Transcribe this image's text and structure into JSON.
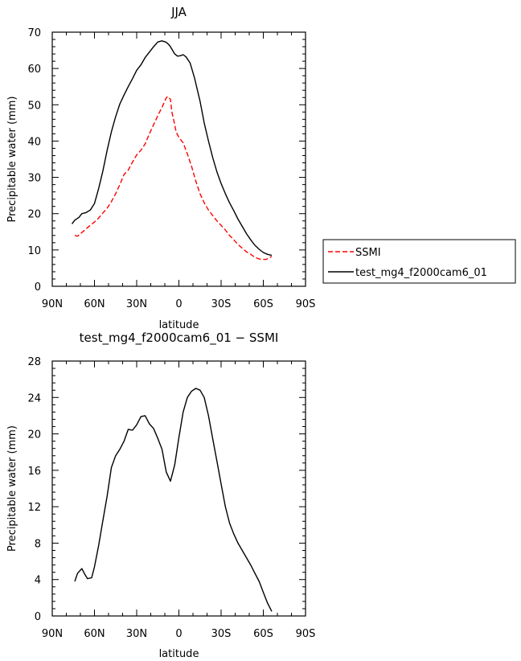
{
  "chart_data": [
    {
      "type": "line",
      "title": "JJA",
      "xlabel": "latitude",
      "ylabel": "Precipitable water (mm)",
      "xlim": [
        90,
        -90
      ],
      "ylim": [
        0,
        70
      ],
      "x_tick_values": [
        90,
        60,
        30,
        0,
        -30,
        -60,
        -90
      ],
      "x_tick_labels": [
        "90N",
        "60N",
        "30N",
        "0",
        "30S",
        "60S",
        "90S"
      ],
      "y_tick_values": [
        0,
        10,
        20,
        30,
        40,
        50,
        60,
        70
      ],
      "y_tick_labels": [
        "0",
        "10",
        "20",
        "30",
        "40",
        "50",
        "60",
        "70"
      ],
      "legend_position": "right",
      "series": [
        {
          "name": "SSMI",
          "color": "#ff0000",
          "dash": "dashed",
          "x": [
            74,
            72,
            69,
            66,
            63,
            60,
            57,
            54,
            51,
            48,
            45,
            42,
            39,
            36,
            33,
            30,
            27,
            24,
            21,
            18,
            15,
            12,
            9,
            8,
            6,
            5,
            3,
            2,
            0,
            -3,
            -6,
            -9,
            -12,
            -15,
            -18,
            -21,
            -24,
            -27,
            -30,
            -33,
            -36,
            -39,
            -42,
            -45,
            -48,
            -51,
            -54,
            -57,
            -60,
            -62,
            -64,
            -66
          ],
          "y": [
            14.0,
            13.8,
            14.8,
            15.8,
            16.8,
            17.7,
            18.8,
            20.2,
            21.5,
            23.3,
            25.5,
            28.0,
            30.8,
            32.0,
            34.2,
            36.2,
            37.5,
            39.2,
            42.0,
            44.5,
            47.0,
            49.3,
            51.9,
            52.3,
            51.5,
            48.0,
            44.5,
            42.5,
            41.0,
            39.5,
            36.5,
            33.0,
            29.0,
            25.5,
            23.0,
            21.0,
            19.5,
            18.0,
            16.8,
            15.5,
            14.0,
            12.8,
            11.5,
            10.5,
            9.5,
            8.8,
            8.0,
            7.5,
            7.4,
            7.4,
            7.8,
            8.2
          ]
        },
        {
          "name": "test_mg4_f2000cam6_01",
          "color": "#000000",
          "dash": "solid",
          "x": [
            76,
            74,
            71,
            69,
            66,
            63,
            60,
            57,
            54,
            51,
            48,
            45,
            42,
            39,
            36,
            33,
            30,
            27,
            24,
            21,
            18,
            15,
            12,
            9,
            7,
            6,
            3,
            1,
            -1,
            -3,
            -5,
            -8,
            -11,
            -15,
            -18,
            -21,
            -24,
            -27,
            -30,
            -33,
            -36,
            -39,
            -42,
            -45,
            -48,
            -51,
            -54,
            -57,
            -60,
            -63,
            -66
          ],
          "y": [
            17.2,
            18.2,
            19.0,
            20.0,
            20.3,
            21.0,
            22.8,
            27.0,
            31.8,
            37.5,
            42.5,
            46.7,
            50.2,
            52.7,
            55.0,
            57.2,
            59.5,
            61.0,
            63.0,
            64.5,
            66.0,
            67.3,
            67.6,
            67.2,
            66.5,
            66.0,
            64.0,
            63.4,
            63.5,
            63.8,
            63.2,
            61.5,
            57.5,
            51.0,
            45.0,
            40.0,
            35.5,
            31.5,
            28.3,
            25.5,
            23.0,
            20.8,
            18.5,
            16.5,
            14.5,
            12.8,
            11.3,
            10.2,
            9.3,
            8.8,
            8.5
          ]
        }
      ]
    },
    {
      "type": "line",
      "title": "test_mg4_f2000cam6_01 − SSMI",
      "xlabel": "latitude",
      "ylabel": "Precipitable water (mm)",
      "xlim": [
        90,
        -90
      ],
      "ylim": [
        0,
        28
      ],
      "x_tick_values": [
        90,
        60,
        30,
        0,
        -30,
        -60,
        -90
      ],
      "x_tick_labels": [
        "90N",
        "60N",
        "30N",
        "0",
        "30S",
        "60S",
        "90S"
      ],
      "y_tick_values": [
        0,
        4,
        8,
        12,
        16,
        20,
        24,
        28
      ],
      "y_tick_labels": [
        "0",
        "4",
        "8",
        "12",
        "16",
        "20",
        "24",
        "28"
      ],
      "series": [
        {
          "color": "#000000",
          "dash": "solid",
          "x": [
            74,
            72,
            69,
            67,
            65,
            62,
            60,
            57,
            54,
            51,
            48,
            45,
            42,
            39,
            36,
            33,
            30,
            27,
            24,
            21,
            18,
            15,
            12,
            9,
            6,
            3,
            0,
            -3,
            -6,
            -9,
            -12,
            -15,
            -18,
            -21,
            -24,
            -27,
            -30,
            -33,
            -36,
            -39,
            -42,
            -45,
            -48,
            -51,
            -54,
            -57,
            -60,
            -63,
            -66
          ],
          "y": [
            3.8,
            4.7,
            5.2,
            4.6,
            4.1,
            4.2,
            5.4,
            7.8,
            10.5,
            13.2,
            16.3,
            17.6,
            18.3,
            19.2,
            20.5,
            20.4,
            21.0,
            21.9,
            22.0,
            21.1,
            20.6,
            19.5,
            18.3,
            15.8,
            14.8,
            16.6,
            19.6,
            22.4,
            24.0,
            24.7,
            25.0,
            24.8,
            24.0,
            22.0,
            19.5,
            17.0,
            14.5,
            12.0,
            10.2,
            9.0,
            8.0,
            7.2,
            6.4,
            5.6,
            4.7,
            3.8,
            2.6,
            1.4,
            0.5
          ]
        }
      ]
    }
  ]
}
